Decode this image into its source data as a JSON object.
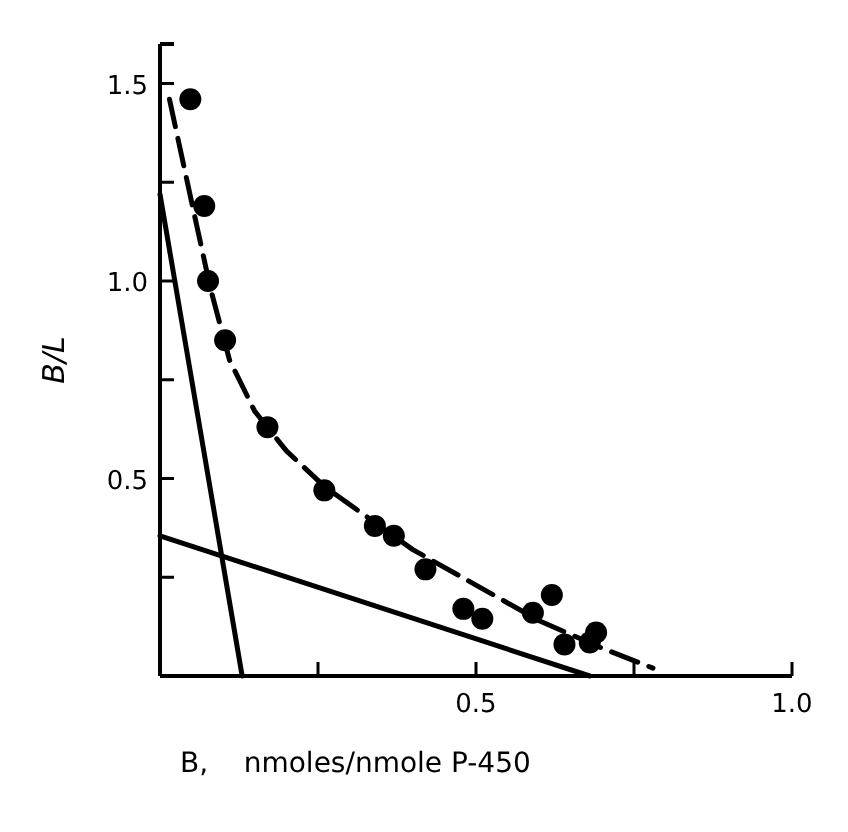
{
  "chart_data": {
    "type": "scatter",
    "xlabel": "B,    nmoles/nmole P-450",
    "ylabel": "B/L",
    "xlim": [
      0,
      1.0
    ],
    "ylim": [
      0,
      1.6
    ],
    "xticks": [
      {
        "value": 0.25,
        "label": null
      },
      0.5,
      {
        "value": 0.75,
        "label": null
      },
      {
        "value": 1,
        "label": "1.0"
      }
    ],
    "yticks": [
      {
        "value": 0.25,
        "label": null
      },
      0.5,
      {
        "value": 0.75,
        "label": null
      },
      {
        "value": 1,
        "label": "1.0"
      },
      {
        "value": 1.25,
        "label": null
      },
      1.5
    ],
    "grid": false,
    "series": [
      {
        "color": "#000000",
        "marker": "circle",
        "x": [
          0.048,
          0.07,
          0.076,
          0.103,
          0.17,
          0.26,
          0.34,
          0.37,
          0.42,
          0.48,
          0.51,
          0.59,
          0.62,
          0.64,
          0.68,
          0.69
        ],
        "values": [
          1.46,
          1.19,
          1.0,
          0.85,
          0.63,
          0.47,
          0.38,
          0.355,
          0.27,
          0.17,
          0.145,
          0.16,
          0.205,
          0.08,
          0.085,
          0.11
        ]
      },
      {
        "type": "line",
        "color": "#000000",
        "line_style": "dashed",
        "x": [
          0.015,
          0.05,
          0.08,
          0.11,
          0.15,
          0.2,
          0.26,
          0.33,
          0.4,
          0.5,
          0.6,
          0.7,
          0.78
        ],
        "values": [
          1.46,
          1.2,
          0.98,
          0.8,
          0.67,
          0.57,
          0.48,
          0.4,
          0.32,
          0.23,
          0.14,
          0.07,
          0.02
        ]
      },
      {
        "type": "line",
        "color": "#000000",
        "line_style": "solid",
        "x": [
          0,
          0.13
        ],
        "values": [
          1.22,
          0
        ]
      },
      {
        "type": "line",
        "color": "#000000",
        "line_style": "solid",
        "x": [
          0,
          0.68
        ],
        "values": [
          0.355,
          0
        ]
      }
    ]
  }
}
